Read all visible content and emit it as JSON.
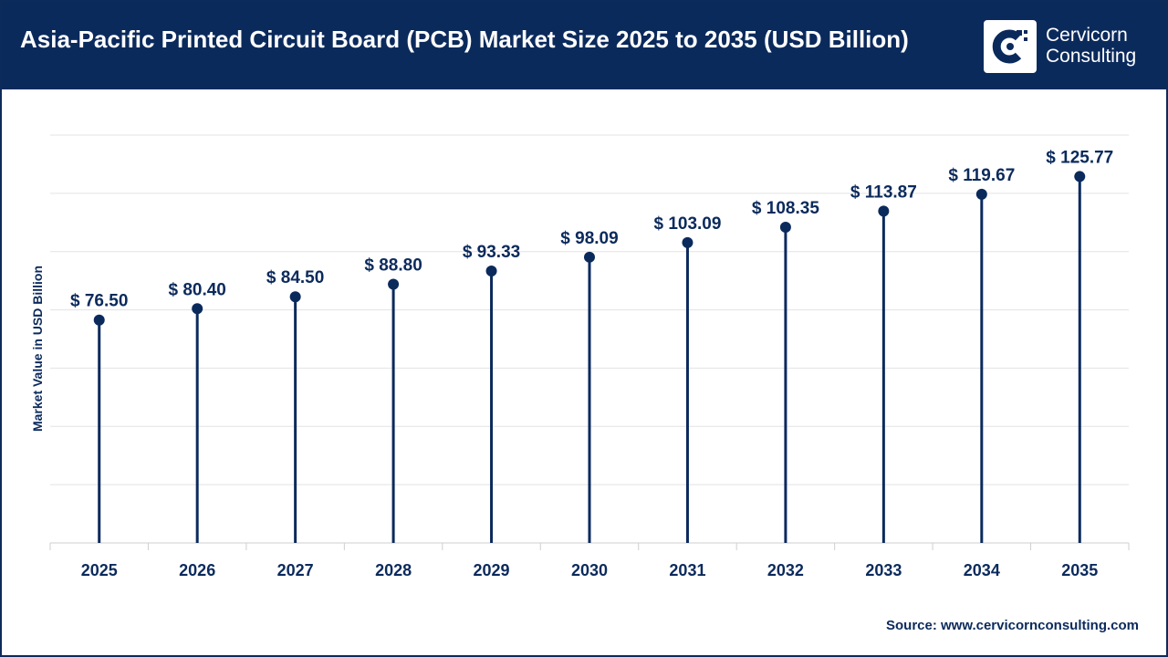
{
  "header": {
    "title": "Asia-Pacific Printed Circuit Board (PCB) Market Size 2025 to 2035 (USD Billion)",
    "logo_line1": "Cervicorn",
    "logo_line2": "Consulting",
    "background_color": "#0b2a5c"
  },
  "chart_data": {
    "type": "lollipop",
    "title": "Asia-Pacific Printed Circuit Board (PCB) Market Size 2025 to 2035 (USD Billion)",
    "xlabel": "",
    "ylabel": "Market Value in USD Billion",
    "categories": [
      "2025",
      "2026",
      "2027",
      "2028",
      "2029",
      "2030",
      "2031",
      "2032",
      "2033",
      "2034",
      "2035"
    ],
    "values": [
      76.5,
      80.4,
      84.5,
      88.8,
      93.33,
      98.09,
      103.09,
      108.35,
      113.87,
      119.67,
      125.77
    ],
    "data_labels": [
      "$ 76.50",
      "$ 80.40",
      "$ 84.50",
      "$ 88.80",
      "$ 93.33",
      "$ 98.09",
      "$ 103.09",
      "$ 108.35",
      "$ 113.87",
      "$ 119.67",
      "$ 125.77"
    ],
    "ylim": [
      0,
      140
    ],
    "grid": true,
    "y_tick_labels_visible": false,
    "color": "#0b2a5c",
    "grid_color": "#e3e3e3"
  },
  "footer": {
    "source": "Source: www.cervicornconsulting.com"
  }
}
